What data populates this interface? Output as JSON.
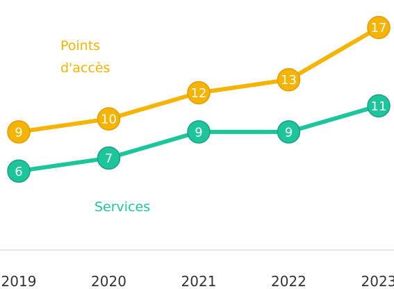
{
  "chart_data": {
    "type": "line",
    "categories": [
      "2019",
      "2020",
      "2021",
      "2022",
      "2023"
    ],
    "series": [
      {
        "name": "Points d'accès",
        "color": "#f4b400",
        "values": [
          9,
          10,
          12,
          13,
          17
        ]
      },
      {
        "name": "Services",
        "color": "#1dc59b",
        "values": [
          6,
          7,
          9,
          9,
          11
        ]
      }
    ],
    "ylim": [
      0,
      19
    ]
  }
}
